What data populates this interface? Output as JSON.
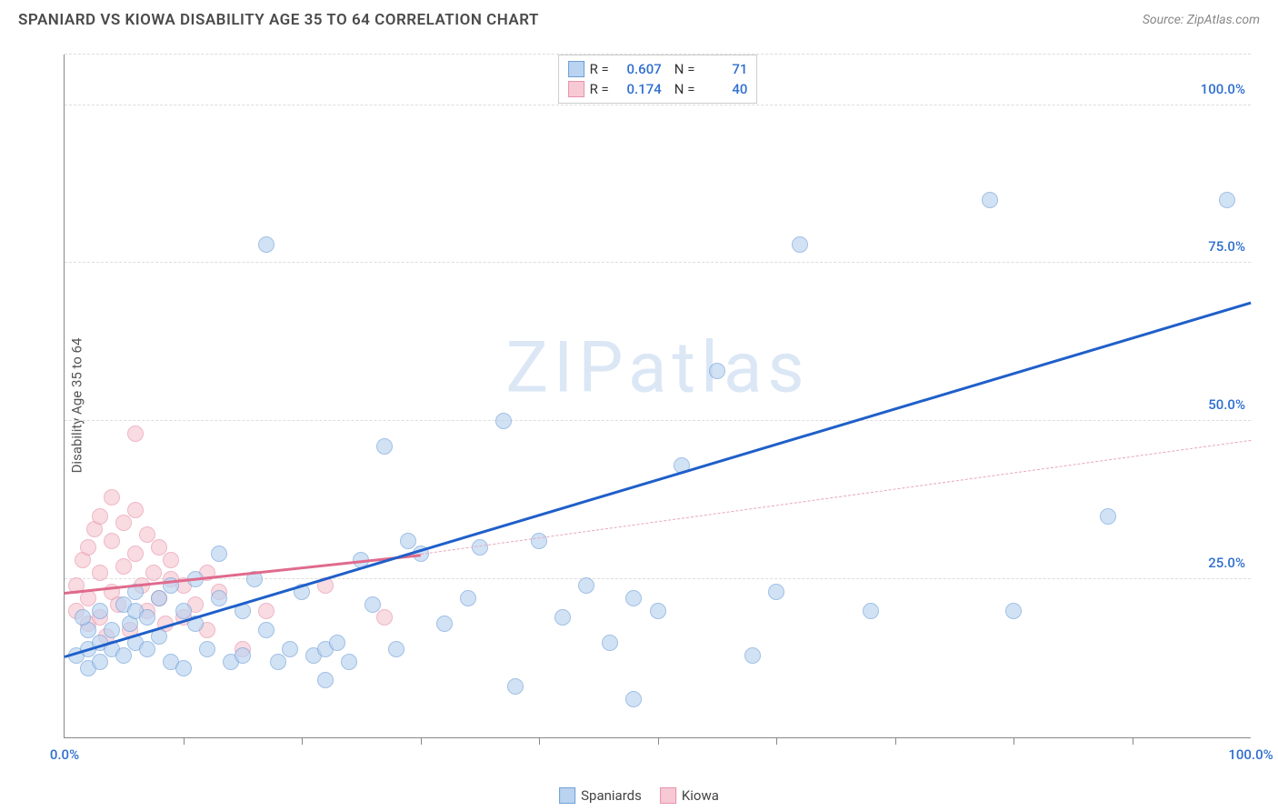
{
  "title": "SPANIARD VS KIOWA DISABILITY AGE 35 TO 64 CORRELATION CHART",
  "source_label": "Source: ZipAtlas.com",
  "ylabel": "Disability Age 35 to 64",
  "watermark": {
    "text": "ZIPatlas",
    "color": "#dbe7f5"
  },
  "chart": {
    "type": "scatter",
    "xlim": [
      0,
      100
    ],
    "ylim": [
      0,
      108
    ],
    "background_color": "#ffffff",
    "grid_color": "#dddddd",
    "grid_positions": [
      25,
      50,
      75,
      100,
      108
    ],
    "yticks": [
      {
        "v": 25,
        "label": "25.0%"
      },
      {
        "v": 50,
        "label": "50.0%"
      },
      {
        "v": 75,
        "label": "75.0%"
      },
      {
        "v": 100,
        "label": "100.0%"
      }
    ],
    "xticks_minor": [
      10,
      20,
      30,
      40,
      50,
      60,
      70,
      80,
      90
    ],
    "xticks_labeled": [
      {
        "v": 0,
        "label": "0.0%"
      },
      {
        "v": 100,
        "label": "100.0%"
      }
    ],
    "tick_label_color": "#2f6fd0",
    "marker_radius": 9,
    "marker_border_width": 1,
    "series": [
      {
        "name": "Spaniards",
        "fill": "#b9d3f0",
        "stroke": "#6f9fd8",
        "fill_opacity": 0.65,
        "R": "0.607",
        "N": "71",
        "trend": {
          "x0": 0,
          "y0": 13,
          "x1": 100,
          "y1": 69,
          "color": "#1f5fc9",
          "width": 3,
          "dashed": false
        },
        "points": [
          [
            1,
            13
          ],
          [
            2,
            14
          ],
          [
            2,
            17
          ],
          [
            1.5,
            19
          ],
          [
            2,
            11
          ],
          [
            3,
            12
          ],
          [
            3,
            15
          ],
          [
            3,
            20
          ],
          [
            4,
            14
          ],
          [
            4,
            17
          ],
          [
            5,
            13
          ],
          [
            5,
            21
          ],
          [
            5.5,
            18
          ],
          [
            6,
            15
          ],
          [
            6,
            20
          ],
          [
            6,
            23
          ],
          [
            7,
            14
          ],
          [
            7,
            19
          ],
          [
            8,
            16
          ],
          [
            8,
            22
          ],
          [
            9,
            12
          ],
          [
            9,
            24
          ],
          [
            10,
            11
          ],
          [
            10,
            20
          ],
          [
            11,
            18
          ],
          [
            11,
            25
          ],
          [
            12,
            14
          ],
          [
            13,
            22
          ],
          [
            13,
            29
          ],
          [
            14,
            12
          ],
          [
            15,
            13
          ],
          [
            15,
            20
          ],
          [
            16,
            25
          ],
          [
            17,
            17
          ],
          [
            17,
            78
          ],
          [
            18,
            12
          ],
          [
            19,
            14
          ],
          [
            20,
            23
          ],
          [
            21,
            13
          ],
          [
            22,
            9
          ],
          [
            22,
            14
          ],
          [
            23,
            15
          ],
          [
            24,
            12
          ],
          [
            25,
            28
          ],
          [
            26,
            21
          ],
          [
            27,
            46
          ],
          [
            28,
            14
          ],
          [
            29,
            31
          ],
          [
            30,
            29
          ],
          [
            32,
            18
          ],
          [
            34,
            22
          ],
          [
            35,
            30
          ],
          [
            37,
            50
          ],
          [
            38,
            8
          ],
          [
            40,
            31
          ],
          [
            42,
            19
          ],
          [
            44,
            24
          ],
          [
            46,
            15
          ],
          [
            48,
            22
          ],
          [
            50,
            20
          ],
          [
            52,
            43
          ],
          [
            55,
            58
          ],
          [
            58,
            13
          ],
          [
            60,
            23
          ],
          [
            62,
            78
          ],
          [
            68,
            20
          ],
          [
            78,
            85
          ],
          [
            80,
            20
          ],
          [
            88,
            35
          ],
          [
            98,
            85
          ],
          [
            48,
            6
          ]
        ]
      },
      {
        "name": "Kiowa",
        "fill": "#f7c9d4",
        "stroke": "#e792a8",
        "fill_opacity": 0.65,
        "R": "0.174",
        "N": "40",
        "trend_solid": {
          "x0": 0,
          "y0": 23,
          "x1": 30,
          "y1": 29,
          "color": "#e06a8c",
          "width": 2.5,
          "dashed": false
        },
        "trend_dashed": {
          "x0": 30,
          "y0": 29,
          "x1": 100,
          "y1": 47,
          "color": "#e9a6b8",
          "width": 1.5,
          "dashed": true
        },
        "points": [
          [
            1,
            20
          ],
          [
            1,
            24
          ],
          [
            1.5,
            28
          ],
          [
            2,
            18
          ],
          [
            2,
            22
          ],
          [
            2,
            30
          ],
          [
            2.5,
            33
          ],
          [
            3,
            19
          ],
          [
            3,
            26
          ],
          [
            3,
            35
          ],
          [
            3.5,
            16
          ],
          [
            4,
            23
          ],
          [
            4,
            31
          ],
          [
            4,
            38
          ],
          [
            4.5,
            21
          ],
          [
            5,
            27
          ],
          [
            5,
            34
          ],
          [
            5.5,
            17
          ],
          [
            6,
            29
          ],
          [
            6,
            36
          ],
          [
            6,
            48
          ],
          [
            6.5,
            24
          ],
          [
            7,
            20
          ],
          [
            7,
            32
          ],
          [
            7.5,
            26
          ],
          [
            8,
            22
          ],
          [
            8,
            30
          ],
          [
            8.5,
            18
          ],
          [
            9,
            25
          ],
          [
            9,
            28
          ],
          [
            10,
            19
          ],
          [
            10,
            24
          ],
          [
            11,
            21
          ],
          [
            12,
            17
          ],
          [
            12,
            26
          ],
          [
            13,
            23
          ],
          [
            15,
            14
          ],
          [
            17,
            20
          ],
          [
            22,
            24
          ],
          [
            27,
            19
          ]
        ]
      }
    ]
  },
  "legend_top": {
    "r_label": "R =",
    "n_label": "N ="
  },
  "legend_bottom": [
    {
      "label": "Spaniards",
      "fill": "#b9d3f0",
      "stroke": "#6f9fd8"
    },
    {
      "label": "Kiowa",
      "fill": "#f7c9d4",
      "stroke": "#e792a8"
    }
  ]
}
